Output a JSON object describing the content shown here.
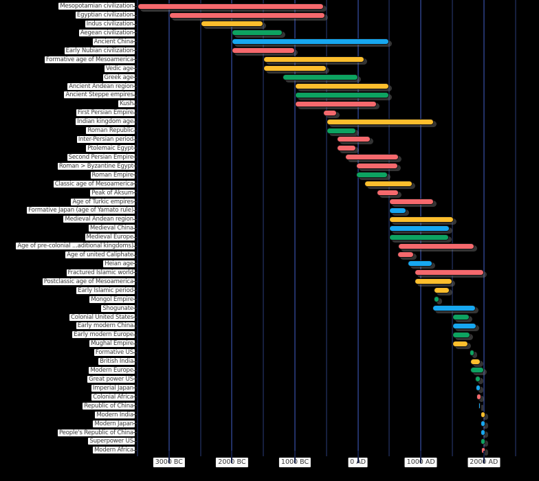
{
  "chart_data": {
    "type": "bar",
    "variant": "horizontal-timeline-gantt",
    "title": "",
    "xlabel": "",
    "ylabel": "",
    "grid": true,
    "legend": false,
    "x_range_years": [
      -3500,
      2875
    ],
    "gridline_step_years": 500,
    "x_ticks": [
      {
        "label": "3000 BC",
        "year": -3000
      },
      {
        "label": "2000 BC",
        "year": -2000
      },
      {
        "label": "1000 BC",
        "year": -1000
      },
      {
        "label": "0 AD",
        "year": 0
      },
      {
        "label": "1000 AD",
        "year": 1000
      },
      {
        "label": "2000 AD",
        "year": 2000
      }
    ],
    "palette": {
      "red": "#f5696d",
      "yellow": "#fcbe2d",
      "green": "#0da361",
      "blue": "#17a7f0"
    },
    "rows": [
      {
        "label": "Mesopotamian civilization",
        "start_year": -3500,
        "end_year": -540,
        "color": "red"
      },
      {
        "label": "Egyptian civilization",
        "start_year": -3000,
        "end_year": -525,
        "color": "red"
      },
      {
        "label": "Indus civilization",
        "start_year": -2500,
        "end_year": -1500,
        "color": "yellow"
      },
      {
        "label": "Aegean civilization",
        "start_year": -2000,
        "end_year": -1200,
        "color": "green"
      },
      {
        "label": "Ancient China",
        "start_year": -2000,
        "end_year": 500,
        "color": "blue"
      },
      {
        "label": "Early Nubian civilization",
        "start_year": -2000,
        "end_year": -1000,
        "color": "red"
      },
      {
        "label": "Formative age of Mesoamerica",
        "start_year": -1500,
        "end_year": 100,
        "color": "yellow"
      },
      {
        "label": "Vedic age",
        "start_year": -1500,
        "end_year": -500,
        "color": "yellow"
      },
      {
        "label": "Greek age",
        "start_year": -1200,
        "end_year": 0,
        "color": "green"
      },
      {
        "label": "Ancient Andean region",
        "start_year": -1000,
        "end_year": 500,
        "color": "yellow"
      },
      {
        "label": "Ancient Steppe empires",
        "start_year": -1000,
        "end_year": 500,
        "color": "green"
      },
      {
        "label": "Kush",
        "start_year": -1000,
        "end_year": 300,
        "color": "red"
      },
      {
        "label": "First Persian Empire",
        "start_year": -550,
        "end_year": -330,
        "color": "red"
      },
      {
        "label": "Indian kingdom age",
        "start_year": -500,
        "end_year": 1200,
        "color": "yellow"
      },
      {
        "label": "Roman Republic",
        "start_year": -500,
        "end_year": -30,
        "color": "green"
      },
      {
        "label": "Inter-Persian period",
        "start_year": -330,
        "end_year": 200,
        "color": "red"
      },
      {
        "label": "Ptolemaic Egypt",
        "start_year": -330,
        "end_year": -30,
        "color": "red"
      },
      {
        "label": "Second Persian Empire",
        "start_year": -200,
        "end_year": 650,
        "color": "red"
      },
      {
        "label": "Roman > Byzantine Egypt",
        "start_year": -30,
        "end_year": 640,
        "color": "red"
      },
      {
        "label": "Roman Empire",
        "start_year": -30,
        "end_year": 475,
        "color": "green"
      },
      {
        "label": "Classic age of Mesoamerica",
        "start_year": 100,
        "end_year": 870,
        "color": "yellow"
      },
      {
        "label": "Peak of Aksum",
        "start_year": 300,
        "end_year": 650,
        "color": "red"
      },
      {
        "label": "Age of Turkic empires",
        "start_year": 500,
        "end_year": 1200,
        "color": "red"
      },
      {
        "label": "Formative Japan (age of Yamato rule)",
        "start_year": 500,
        "end_year": 770,
        "color": "blue"
      },
      {
        "label": "Medieval Andean region",
        "start_year": 500,
        "end_year": 1520,
        "color": "yellow"
      },
      {
        "label": "Medieval China",
        "start_year": 500,
        "end_year": 1460,
        "color": "blue"
      },
      {
        "label": "Medieval Europe",
        "start_year": 500,
        "end_year": 1450,
        "color": "green"
      },
      {
        "label": "Age of pre-colonial ...aditional kingdoms)",
        "start_year": 640,
        "end_year": 1850,
        "color": "red"
      },
      {
        "label": "Age of united Caliphate",
        "start_year": 630,
        "end_year": 890,
        "color": "red"
      },
      {
        "label": "Heian age",
        "start_year": 794,
        "end_year": 1185,
        "color": "blue"
      },
      {
        "label": "Fractured Islamic world",
        "start_year": 900,
        "end_year": 2000,
        "color": "red"
      },
      {
        "label": "Postclassic age of Mesoamerica",
        "start_year": 900,
        "end_year": 1500,
        "color": "yellow"
      },
      {
        "label": "Early Islamic period",
        "start_year": 1200,
        "end_year": 1460,
        "color": "yellow"
      },
      {
        "label": "Mongol Empire",
        "start_year": 1206,
        "end_year": 1294,
        "color": "green"
      },
      {
        "label": "Shogunate",
        "start_year": 1185,
        "end_year": 1868,
        "color": "blue"
      },
      {
        "label": "Colonial United States",
        "start_year": 1500,
        "end_year": 1776,
        "color": "green"
      },
      {
        "label": "Early modern China",
        "start_year": 1500,
        "end_year": 1880,
        "color": "blue"
      },
      {
        "label": "Early modern Europe",
        "start_year": 1500,
        "end_year": 1780,
        "color": "green"
      },
      {
        "label": "Mughal Empire",
        "start_year": 1500,
        "end_year": 1755,
        "color": "yellow"
      },
      {
        "label": "Formative US",
        "start_year": 1776,
        "end_year": 1850,
        "color": "green"
      },
      {
        "label": "British India",
        "start_year": 1780,
        "end_year": 1947,
        "color": "yellow"
      },
      {
        "label": "Modern Europe",
        "start_year": 1780,
        "end_year": 2000,
        "color": "green"
      },
      {
        "label": "Great power US",
        "start_year": 1865,
        "end_year": 1945,
        "color": "green"
      },
      {
        "label": "Imperial Japan",
        "start_year": 1868,
        "end_year": 1945,
        "color": "blue"
      },
      {
        "label": "Colonial Africa",
        "start_year": 1880,
        "end_year": 1960,
        "color": "red"
      },
      {
        "label": "Republic of China",
        "start_year": 1912,
        "end_year": 1949,
        "color": "blue"
      },
      {
        "label": "Modern India",
        "start_year": 1947,
        "end_year": 2020,
        "color": "yellow"
      },
      {
        "label": "Modern Japan",
        "start_year": 1945,
        "end_year": 2020,
        "color": "blue"
      },
      {
        "label": "People's Republic of China",
        "start_year": 1949,
        "end_year": 2020,
        "color": "blue"
      },
      {
        "label": "Superpower US",
        "start_year": 1945,
        "end_year": 2020,
        "color": "green"
      },
      {
        "label": "Modern Africa",
        "start_year": 1960,
        "end_year": 2020,
        "color": "red"
      }
    ]
  }
}
